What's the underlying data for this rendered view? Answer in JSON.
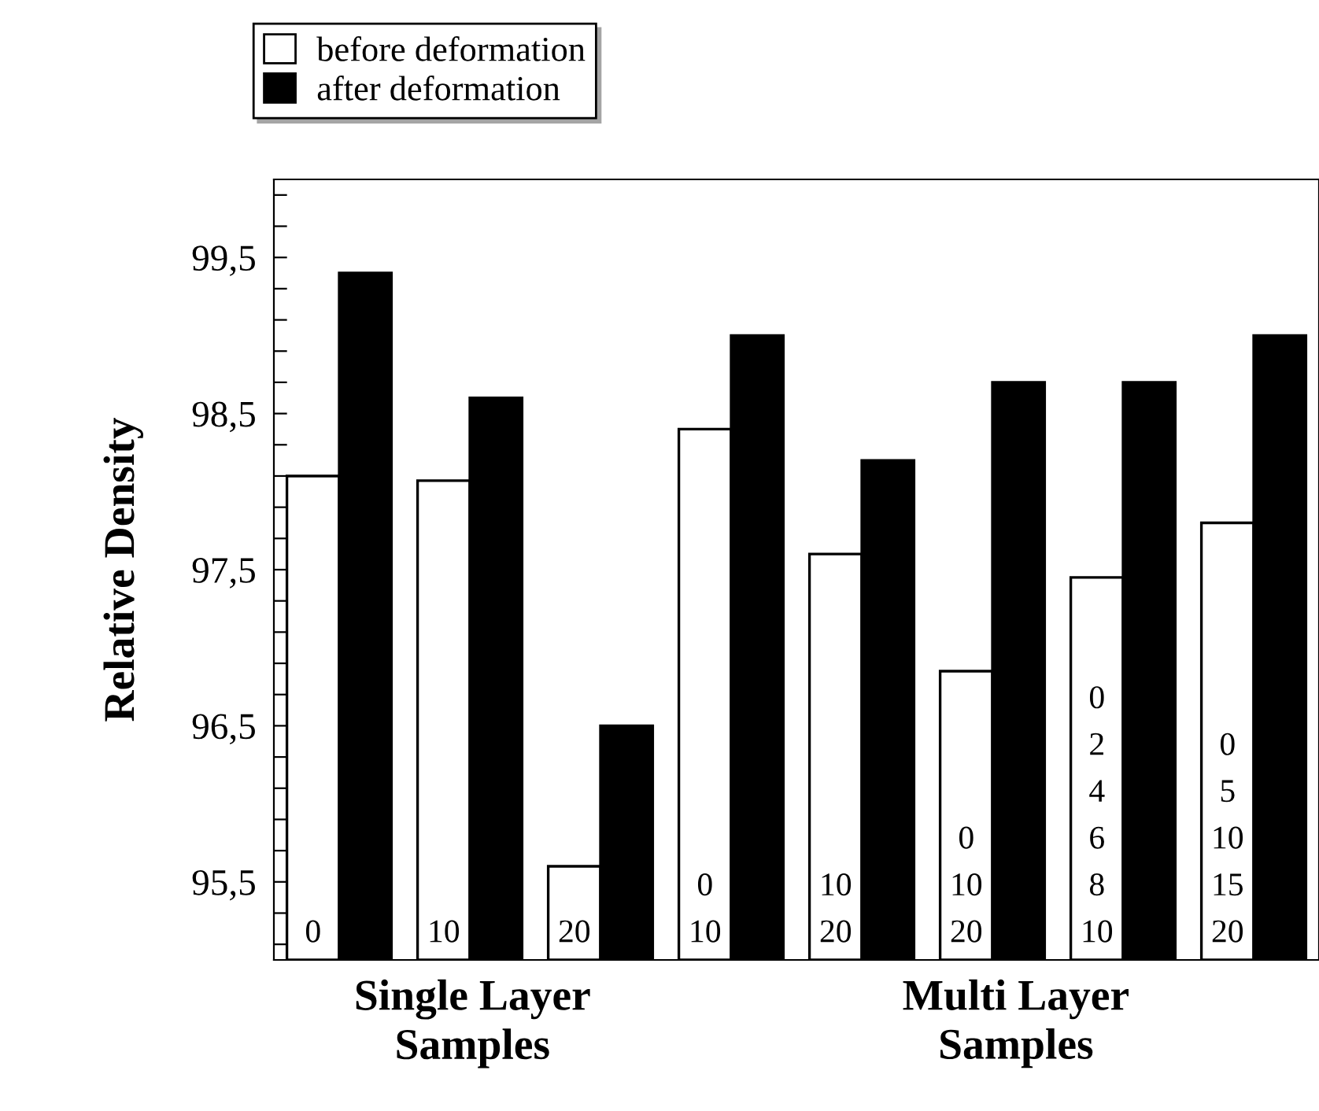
{
  "chart_data": {
    "type": "bar",
    "ylabel": "Relative Density",
    "categories": [
      "0",
      "10",
      "20",
      "0\n10",
      "10\n20",
      "0\n10\n20",
      "0\n2\n4\n6\n8\n10",
      "0\n5\n10\n15\n20"
    ],
    "series": [
      {
        "name": "before deformation",
        "color": "#ffffff",
        "values": [
          98.1,
          98.07,
          95.6,
          98.4,
          97.6,
          96.85,
          97.45,
          97.8
        ]
      },
      {
        "name": "after deformation",
        "color": "#000000",
        "values": [
          99.4,
          98.6,
          96.5,
          99.0,
          98.2,
          98.7,
          98.7,
          99.0
        ]
      }
    ],
    "ylim": [
      95.0,
      100.0
    ],
    "yticks": [
      {
        "value": 95.1,
        "label": null
      },
      {
        "value": 95.3,
        "label": null
      },
      {
        "value": 95.5,
        "label": "95,5"
      },
      {
        "value": 95.7,
        "label": null
      },
      {
        "value": 95.9,
        "label": null
      },
      {
        "value": 96.1,
        "label": null
      },
      {
        "value": 96.3,
        "label": null
      },
      {
        "value": 96.5,
        "label": "96,5"
      },
      {
        "value": 96.7,
        "label": null
      },
      {
        "value": 96.9,
        "label": null
      },
      {
        "value": 97.1,
        "label": null
      },
      {
        "value": 97.3,
        "label": null
      },
      {
        "value": 97.5,
        "label": "97,5"
      },
      {
        "value": 97.7,
        "label": null
      },
      {
        "value": 97.9,
        "label": null
      },
      {
        "value": 98.1,
        "label": null
      },
      {
        "value": 98.3,
        "label": null
      },
      {
        "value": 98.5,
        "label": "98,5"
      },
      {
        "value": 98.7,
        "label": null
      },
      {
        "value": 98.9,
        "label": null
      },
      {
        "value": 99.1,
        "label": null
      },
      {
        "value": 99.3,
        "label": null
      },
      {
        "value": 99.5,
        "label": "99,5"
      },
      {
        "value": 99.7,
        "label": null
      },
      {
        "value": 99.9,
        "label": null
      }
    ],
    "annotations": [
      "Single Layer\nSamples",
      "Multi Layer\nSamples"
    ],
    "legend": "top left",
    "grid": false
  }
}
